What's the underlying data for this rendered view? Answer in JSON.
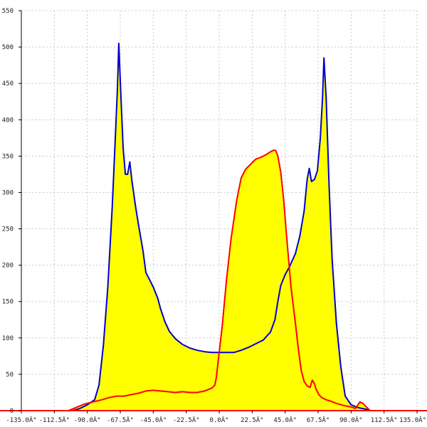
{
  "chart_data": {
    "type": "area",
    "title": "",
    "xlabel": "",
    "ylabel": "",
    "xlim": [
      -135,
      135
    ],
    "ylim": [
      0,
      550
    ],
    "grid": true,
    "x_ticks": [
      -135,
      -112.5,
      -90,
      -67.5,
      -45,
      -22.5,
      0,
      22.5,
      45,
      67.5,
      90,
      112.5,
      135
    ],
    "x_tick_labels": [
      "-135.0Â°",
      "-112.5Â°",
      "-90.0Â°",
      "-67.5Â°",
      "-45.0Â°",
      "-22.5Â°",
      "0.0Â°",
      "22.5Â°",
      "45.0Â°",
      "67.5Â°",
      "90.0Â°",
      "112.5Â°",
      "135.0Â°"
    ],
    "y_ticks": [
      0,
      50,
      100,
      150,
      200,
      250,
      300,
      350,
      400,
      450,
      500,
      550
    ],
    "y_tick_labels": [
      "0",
      "50",
      "100",
      "150",
      "200",
      "250",
      "300",
      "350",
      "400",
      "450",
      "500",
      "550"
    ],
    "fill_color": "#ffff00",
    "series": [
      {
        "color": "#0000cc",
        "points": [
          [
            -100,
            0
          ],
          [
            -95,
            3
          ],
          [
            -90,
            8
          ],
          [
            -85,
            15
          ],
          [
            -82,
            35
          ],
          [
            -79,
            90
          ],
          [
            -76,
            170
          ],
          [
            -73,
            280
          ],
          [
            -71,
            370
          ],
          [
            -69.5,
            440
          ],
          [
            -68.5,
            505
          ],
          [
            -67,
            430
          ],
          [
            -65.5,
            360
          ],
          [
            -64,
            325
          ],
          [
            -62.5,
            325
          ],
          [
            -61,
            342
          ],
          [
            -59.5,
            315
          ],
          [
            -57,
            280
          ],
          [
            -55,
            255
          ],
          [
            -52,
            220
          ],
          [
            -50,
            190
          ],
          [
            -47,
            178
          ],
          [
            -45,
            170
          ],
          [
            -42,
            155
          ],
          [
            -40,
            140
          ],
          [
            -37,
            122
          ],
          [
            -34,
            109
          ],
          [
            -30,
            99
          ],
          [
            -25,
            91
          ],
          [
            -20,
            86
          ],
          [
            -15,
            83
          ],
          [
            -10,
            81
          ],
          [
            -5,
            80
          ],
          [
            0,
            80
          ],
          [
            5,
            80
          ],
          [
            10,
            80
          ],
          [
            15,
            83
          ],
          [
            20,
            87
          ],
          [
            25,
            92
          ],
          [
            30,
            97
          ],
          [
            35,
            108
          ],
          [
            38,
            125
          ],
          [
            40,
            150
          ],
          [
            42,
            172
          ],
          [
            45,
            187
          ],
          [
            48,
            198
          ],
          [
            52,
            216
          ],
          [
            55,
            240
          ],
          [
            58,
            275
          ],
          [
            60,
            318
          ],
          [
            61.5,
            333
          ],
          [
            63,
            315
          ],
          [
            65,
            318
          ],
          [
            67,
            330
          ],
          [
            69,
            375
          ],
          [
            70.5,
            430
          ],
          [
            71.5,
            485
          ],
          [
            73,
            430
          ],
          [
            75,
            310
          ],
          [
            77,
            210
          ],
          [
            80,
            120
          ],
          [
            83,
            60
          ],
          [
            86,
            20
          ],
          [
            90,
            8
          ],
          [
            95,
            4
          ],
          [
            100,
            2
          ],
          [
            103,
            0
          ]
        ]
      },
      {
        "color": "#ff0000",
        "points": [
          [
            -103,
            0
          ],
          [
            -98,
            4
          ],
          [
            -92,
            9
          ],
          [
            -86,
            12
          ],
          [
            -80,
            15
          ],
          [
            -75,
            18
          ],
          [
            -70,
            20
          ],
          [
            -65,
            20
          ],
          [
            -60,
            22
          ],
          [
            -55,
            24
          ],
          [
            -50,
            27
          ],
          [
            -45,
            28
          ],
          [
            -40,
            27
          ],
          [
            -35,
            26
          ],
          [
            -30,
            25
          ],
          [
            -25,
            26
          ],
          [
            -20,
            25
          ],
          [
            -15,
            25
          ],
          [
            -10,
            27
          ],
          [
            -5,
            31
          ],
          [
            -3,
            35
          ],
          [
            -2,
            45
          ],
          [
            0,
            80
          ],
          [
            2,
            115
          ],
          [
            5,
            180
          ],
          [
            8,
            235
          ],
          [
            12,
            290
          ],
          [
            15,
            320
          ],
          [
            18,
            332
          ],
          [
            22,
            340
          ],
          [
            25,
            346
          ],
          [
            28,
            348
          ],
          [
            32,
            352
          ],
          [
            35,
            356
          ],
          [
            37,
            358
          ],
          [
            38.5,
            358
          ],
          [
            40,
            350
          ],
          [
            42,
            328
          ],
          [
            44,
            290
          ],
          [
            46,
            240
          ],
          [
            49,
            170
          ],
          [
            52,
            120
          ],
          [
            54,
            85
          ],
          [
            56,
            55
          ],
          [
            58,
            40
          ],
          [
            60,
            34
          ],
          [
            62,
            32
          ],
          [
            63.5,
            42
          ],
          [
            65,
            37
          ],
          [
            66,
            30
          ],
          [
            68,
            22
          ],
          [
            70,
            18
          ],
          [
            73,
            15
          ],
          [
            76,
            13
          ],
          [
            80,
            10
          ],
          [
            85,
            7
          ],
          [
            90,
            5
          ],
          [
            93,
            3
          ],
          [
            96,
            12
          ],
          [
            98,
            10
          ],
          [
            100,
            6
          ],
          [
            102,
            2
          ],
          [
            103,
            0
          ]
        ]
      }
    ],
    "baseline_color": "#ff0000"
  }
}
